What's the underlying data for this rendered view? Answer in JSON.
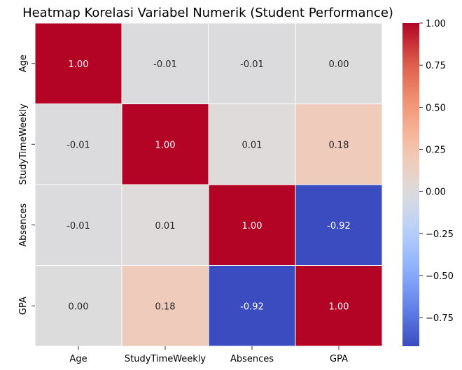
{
  "chart_data": {
    "type": "heatmap",
    "title": "Heatmap Korelasi Variabel Numerik (Student Performance)",
    "xlabel": "",
    "ylabel": "",
    "x_categories": [
      "Age",
      "StudyTimeWeekly",
      "Absences",
      "GPA"
    ],
    "y_categories": [
      "Age",
      "StudyTimeWeekly",
      "Absences",
      "GPA"
    ],
    "values": [
      [
        1.0,
        -0.01,
        -0.01,
        0.0
      ],
      [
        -0.01,
        1.0,
        0.01,
        0.18
      ],
      [
        -0.01,
        0.01,
        1.0,
        -0.92
      ],
      [
        0.0,
        0.18,
        -0.92,
        1.0
      ]
    ],
    "cell_labels": [
      [
        "1.00",
        "-0.01",
        "-0.01",
        "0.00"
      ],
      [
        "-0.01",
        "1.00",
        "0.01",
        "0.18"
      ],
      [
        "-0.01",
        "0.01",
        "1.00",
        "-0.92"
      ],
      [
        "0.00",
        "0.18",
        "-0.92",
        "1.00"
      ]
    ],
    "colormap": "coolwarm",
    "colorbar": {
      "range": [
        -0.92,
        1.0
      ],
      "tick_values": [
        -0.75,
        -0.5,
        -0.25,
        0.0,
        0.25,
        0.5,
        0.75,
        1.0
      ],
      "tick_labels": [
        "−0.75",
        "−0.50",
        "−0.25",
        "0.00",
        "0.25",
        "0.50",
        "0.75",
        "1.00"
      ]
    },
    "colors": {
      "low": "#3b4cc0",
      "mid": "#dddcdc",
      "high": "#b40426",
      "grid": "#ffffff"
    }
  }
}
